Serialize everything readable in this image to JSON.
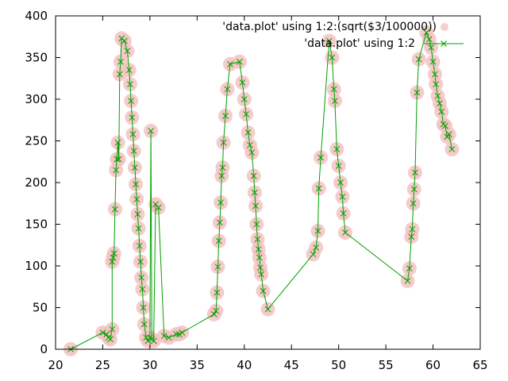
{
  "chart_data": {
    "type": "scatter",
    "xlim": [
      20,
      65
    ],
    "ylim": [
      0,
      400
    ],
    "xticks": [
      20,
      25,
      30,
      35,
      40,
      45,
      50,
      55,
      60,
      65
    ],
    "yticks": [
      0,
      50,
      100,
      150,
      200,
      250,
      300,
      350,
      400
    ],
    "grid": false,
    "legend_position": "top-right",
    "legend": [
      "'data.plot' using 1:2:(sqrt($3/100000))",
      "'data.plot' using 1:2"
    ],
    "series": [
      {
        "name": "'data.plot' using 1:2:(sqrt($3/100000))",
        "style": "circles",
        "color": "#f4c2c2"
      },
      {
        "name": "'data.plot' using 1:2",
        "style": "linespoints",
        "marker": "x",
        "color": "#00a000"
      }
    ],
    "points": [
      [
        21.6,
        0
      ],
      [
        25.0,
        20
      ],
      [
        25.4,
        18
      ],
      [
        25.6,
        14
      ],
      [
        25.8,
        12
      ],
      [
        26.0,
        24
      ],
      [
        26.0,
        105
      ],
      [
        26.1,
        110
      ],
      [
        26.2,
        115
      ],
      [
        26.3,
        168
      ],
      [
        26.4,
        215
      ],
      [
        26.5,
        228
      ],
      [
        26.6,
        248
      ],
      [
        26.7,
        228
      ],
      [
        26.8,
        330
      ],
      [
        26.9,
        345
      ],
      [
        27.0,
        373
      ],
      [
        27.3,
        370
      ],
      [
        27.6,
        358
      ],
      [
        27.8,
        335
      ],
      [
        27.9,
        318
      ],
      [
        28.0,
        298
      ],
      [
        28.1,
        278
      ],
      [
        28.2,
        258
      ],
      [
        28.3,
        238
      ],
      [
        28.4,
        218
      ],
      [
        28.5,
        198
      ],
      [
        28.6,
        180
      ],
      [
        28.7,
        162
      ],
      [
        28.8,
        145
      ],
      [
        28.9,
        124
      ],
      [
        29.0,
        105
      ],
      [
        29.1,
        86
      ],
      [
        29.2,
        72
      ],
      [
        29.3,
        50
      ],
      [
        29.4,
        30
      ],
      [
        29.6,
        14
      ],
      [
        29.8,
        10
      ],
      [
        30.0,
        14
      ],
      [
        30.1,
        262
      ],
      [
        30.2,
        12
      ],
      [
        30.4,
        10
      ],
      [
        30.6,
        174
      ],
      [
        30.9,
        170
      ],
      [
        31.5,
        16
      ],
      [
        32.0,
        14
      ],
      [
        32.8,
        18
      ],
      [
        33.1,
        18
      ],
      [
        33.4,
        20
      ],
      [
        36.8,
        42
      ],
      [
        37.0,
        46
      ],
      [
        37.1,
        68
      ],
      [
        37.2,
        99
      ],
      [
        37.3,
        130
      ],
      [
        37.4,
        152
      ],
      [
        37.5,
        176
      ],
      [
        37.6,
        208
      ],
      [
        37.7,
        218
      ],
      [
        37.8,
        248
      ],
      [
        38.0,
        280
      ],
      [
        38.2,
        312
      ],
      [
        38.5,
        342
      ],
      [
        39.5,
        345
      ],
      [
        39.8,
        320
      ],
      [
        40.0,
        300
      ],
      [
        40.2,
        282
      ],
      [
        40.4,
        260
      ],
      [
        40.6,
        245
      ],
      [
        40.8,
        236
      ],
      [
        41.0,
        208
      ],
      [
        41.1,
        188
      ],
      [
        41.2,
        172
      ],
      [
        41.3,
        150
      ],
      [
        41.4,
        132
      ],
      [
        41.5,
        120
      ],
      [
        41.6,
        110
      ],
      [
        41.7,
        98
      ],
      [
        41.8,
        90
      ],
      [
        42.0,
        70
      ],
      [
        42.5,
        48
      ],
      [
        47.3,
        114
      ],
      [
        47.6,
        122
      ],
      [
        47.8,
        142
      ],
      [
        47.9,
        193
      ],
      [
        48.1,
        230
      ],
      [
        49.0,
        370
      ],
      [
        49.3,
        350
      ],
      [
        49.5,
        312
      ],
      [
        49.6,
        298
      ],
      [
        49.8,
        240
      ],
      [
        50.0,
        220
      ],
      [
        50.2,
        200
      ],
      [
        50.4,
        183
      ],
      [
        50.5,
        163
      ],
      [
        50.7,
        140
      ],
      [
        57.3,
        82
      ],
      [
        57.5,
        97
      ],
      [
        57.7,
        135
      ],
      [
        57.8,
        144
      ],
      [
        57.9,
        175
      ],
      [
        58.0,
        192
      ],
      [
        58.1,
        212
      ],
      [
        58.3,
        308
      ],
      [
        58.5,
        348
      ],
      [
        59.3,
        380
      ],
      [
        59.6,
        372
      ],
      [
        59.8,
        362
      ],
      [
        60.0,
        345
      ],
      [
        60.2,
        330
      ],
      [
        60.3,
        318
      ],
      [
        60.5,
        304
      ],
      [
        60.7,
        295
      ],
      [
        60.9,
        285
      ],
      [
        61.1,
        270
      ],
      [
        61.3,
        268
      ],
      [
        61.5,
        255
      ],
      [
        61.7,
        258
      ],
      [
        62.0,
        240
      ]
    ]
  }
}
